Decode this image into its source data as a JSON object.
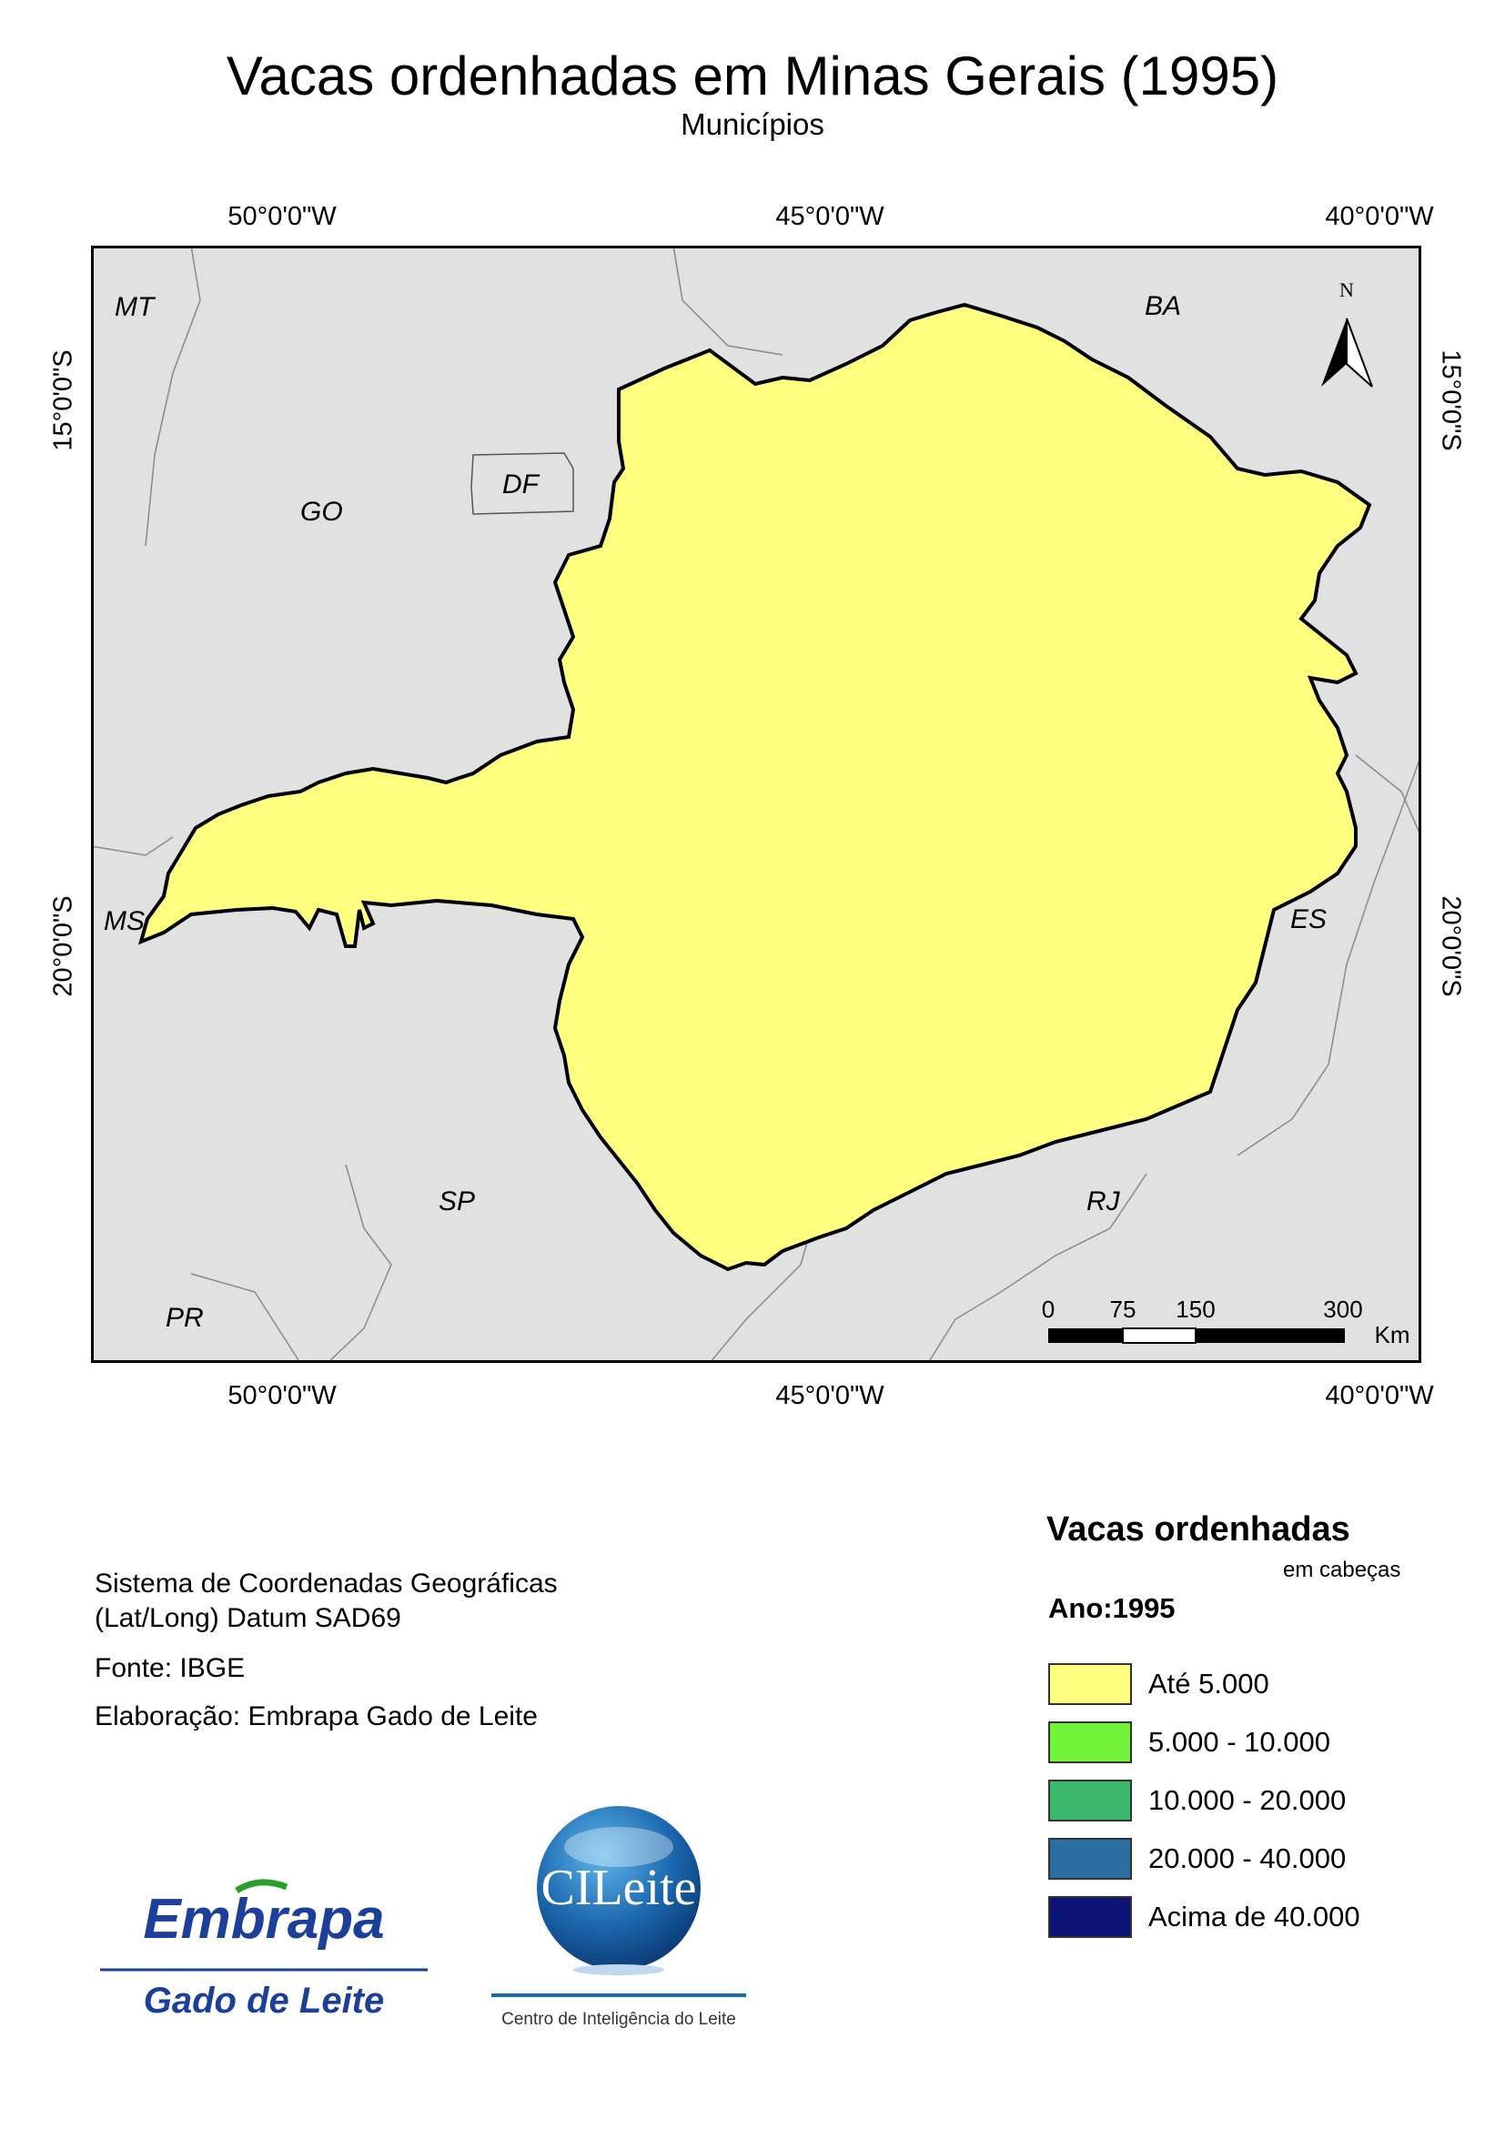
{
  "title": "Vacas ordenhadas em Minas Gerais (1995)",
  "subtitle": "Municípios",
  "graticule": {
    "top": [
      "50°0'0\"W",
      "45°0'0\"W",
      "40°0'0\"W"
    ],
    "bottom": [
      "50°0'0\"W",
      "45°0'0\"W",
      "40°0'0\"W"
    ],
    "left": [
      "15°0'0\"S",
      "20°0'0\"S"
    ],
    "right": [
      "15°0'0\"S",
      "20°0'0\"S"
    ]
  },
  "map": {
    "states": [
      "MT",
      "BA",
      "GO",
      "DF",
      "MS",
      "ES",
      "SP",
      "RJ",
      "PR"
    ],
    "north_label": "N",
    "scale_ticks": [
      "0",
      "75",
      "150",
      "300"
    ],
    "scale_unit": "Km",
    "colors": {
      "background": "#e1e1e1",
      "border": "#000000",
      "state_lines": "#8a8a8a"
    }
  },
  "info": {
    "crs_line1": "Sistema de Coordenadas Geográficas",
    "crs_line2": "(Lat/Long) Datum SAD69",
    "source": "Fonte: IBGE",
    "author": "Elaboração: Embrapa Gado de Leite"
  },
  "legend": {
    "title": "Vacas ordenhadas",
    "unit": "em cabeças",
    "year": "Ano:1995",
    "classes": [
      {
        "label": "Até 5.000",
        "color": "#ffff80"
      },
      {
        "label": "5.000 - 10.000",
        "color": "#73f23a"
      },
      {
        "label": "10.000 - 20.000",
        "color": "#3cb86a"
      },
      {
        "label": "20.000 - 40.000",
        "color": "#2a6ea2"
      },
      {
        "label": "Acima de 40.000",
        "color": "#0d1475"
      }
    ]
  },
  "logos": {
    "embrapa_line1": "Embrapa",
    "embrapa_line2": "Gado de Leite",
    "cileite_name": "CILeite",
    "cileite_caption": "Centro de Inteligência do Leite"
  }
}
